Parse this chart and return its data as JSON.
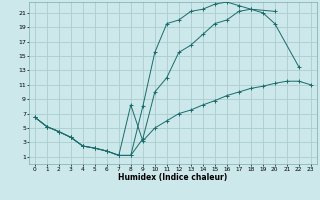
{
  "title": "",
  "xlabel": "Humidex (Indice chaleur)",
  "bg_color": "#cce8ea",
  "grid_color": "#aacdd0",
  "line_color": "#1a6b6b",
  "xlim": [
    -0.5,
    23.5
  ],
  "ylim": [
    0,
    22.5
  ],
  "xticks": [
    0,
    1,
    2,
    3,
    4,
    5,
    6,
    7,
    8,
    9,
    10,
    11,
    12,
    13,
    14,
    15,
    16,
    17,
    18,
    19,
    20,
    21,
    22,
    23
  ],
  "yticks": [
    1,
    3,
    5,
    7,
    9,
    11,
    13,
    15,
    17,
    19,
    21
  ],
  "line1_x": [
    0,
    1,
    2,
    3,
    4,
    5,
    6,
    7,
    8,
    9,
    10,
    11,
    12,
    13,
    14,
    15,
    16,
    17,
    18,
    20
  ],
  "line1_y": [
    6.5,
    5.2,
    4.5,
    3.7,
    2.5,
    2.2,
    1.8,
    1.2,
    1.2,
    8,
    15.5,
    19.5,
    20.0,
    21.2,
    21.5,
    22.2,
    22.5,
    22.0,
    21.5,
    21.2
  ],
  "line2_x": [
    0,
    1,
    2,
    3,
    4,
    5,
    6,
    7,
    8,
    9,
    10,
    11,
    12,
    13,
    14,
    15,
    16,
    17,
    18,
    19,
    20,
    22
  ],
  "line2_y": [
    6.5,
    5.2,
    4.5,
    3.7,
    2.5,
    2.2,
    1.8,
    1.2,
    1.2,
    3.5,
    10,
    12,
    15.5,
    16.5,
    18,
    19.5,
    20,
    21.2,
    21.5,
    21.0,
    19.5,
    13.5
  ],
  "line3_x": [
    0,
    1,
    2,
    3,
    4,
    5,
    6,
    7,
    8,
    9,
    10,
    11,
    12,
    13,
    14,
    15,
    16,
    17,
    18,
    19,
    20,
    21,
    22,
    23
  ],
  "line3_y": [
    6.5,
    5.2,
    4.5,
    3.7,
    2.5,
    2.2,
    1.8,
    1.2,
    8.2,
    3.2,
    5.0,
    6.0,
    7.0,
    7.5,
    8.2,
    8.8,
    9.5,
    10.0,
    10.5,
    10.8,
    11.2,
    11.5,
    11.5,
    11.0
  ]
}
